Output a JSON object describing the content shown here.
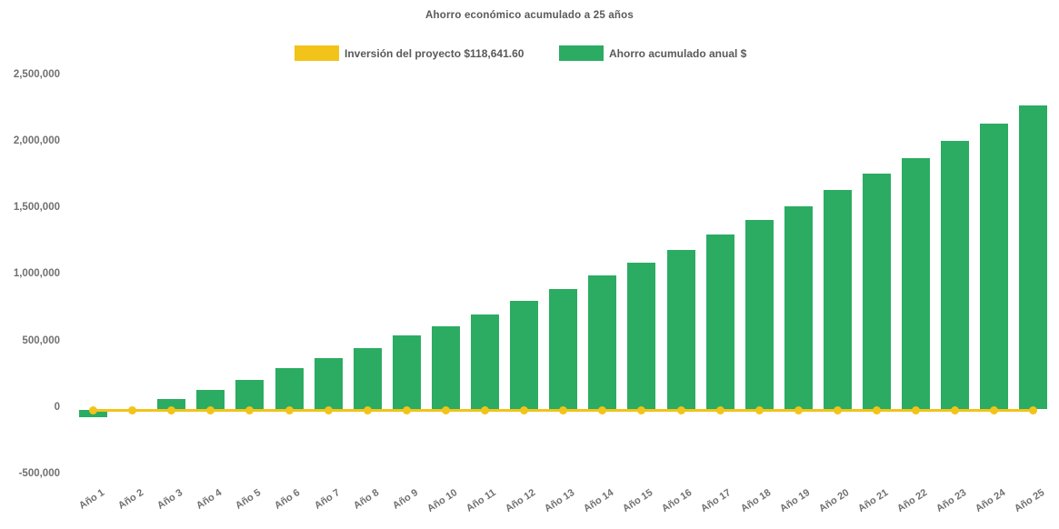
{
  "title": "Ahorro económico acumulado a 25 años",
  "legend": {
    "position": "top",
    "items": [
      {
        "label": "Inversión del proyecto $118,641.60",
        "color": "#F2C319",
        "series": "investment-line"
      },
      {
        "label": "Ahorro acumulado anual $",
        "color": "#2BAC62",
        "series": "savings-bars"
      }
    ]
  },
  "chart_data": {
    "type": "bar",
    "combo": "bar+line",
    "title": "Ahorro económico acumulado a 25 años",
    "categories": [
      "Año 1",
      "Año 2",
      "Año 3",
      "Año 4",
      "Año 5",
      "Año 6",
      "Año 7",
      "Año 8",
      "Año 9",
      "Año 10",
      "Año 11",
      "Año 12",
      "Año 13",
      "Año 14",
      "Año 15",
      "Año 16",
      "Año 17",
      "Año 18",
      "Año 19",
      "Año 20",
      "Año 21",
      "Año 22",
      "Año 23",
      "Año 24",
      "Año 25"
    ],
    "series": [
      {
        "name": "Ahorro acumulado anual $",
        "type": "bar",
        "color": "#2BAC62",
        "values": [
          -75000,
          0,
          60000,
          128000,
          207000,
          293000,
          370000,
          445000,
          537000,
          607000,
          698000,
          798000,
          889000,
          987000,
          1086000,
          1182000,
          1294000,
          1405000,
          1510000,
          1628000,
          1753000,
          1871000,
          2000000,
          2128000,
          2265000
        ]
      },
      {
        "name": "Inversión del proyecto $118,641.60",
        "type": "line",
        "color": "#F2C319",
        "marker": "circle",
        "investment_amount_label": "$118,641.60",
        "values": [
          0,
          0,
          0,
          0,
          0,
          0,
          0,
          0,
          0,
          0,
          0,
          0,
          0,
          0,
          0,
          0,
          0,
          0,
          0,
          0,
          0,
          0,
          0,
          0,
          0
        ]
      }
    ],
    "ylim": [
      -500000,
      2500000
    ],
    "yticks": [
      2500000,
      2000000,
      1500000,
      1000000,
      500000,
      0,
      -500000
    ],
    "ytick_labels": [
      "2,500,000",
      "2,000,000",
      "1,500,000",
      "1,000,000",
      "500,000",
      "0",
      "-500,000"
    ],
    "xlabel": "",
    "ylabel": "",
    "grid": false,
    "x_label_rotation": -33,
    "legend_position": "top"
  }
}
